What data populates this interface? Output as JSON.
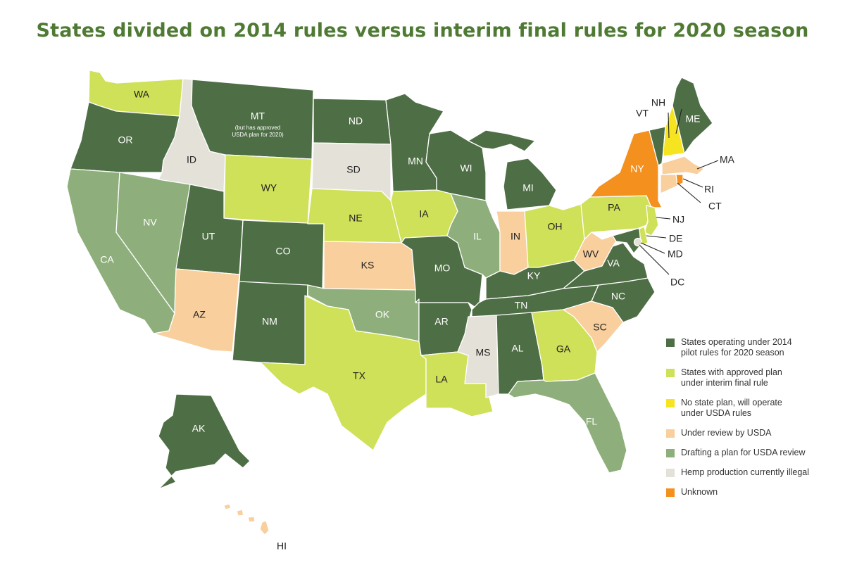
{
  "title": "States divided on 2014 rules versus interim final rules for 2020 season",
  "colors": {
    "pilot_2014": "#4e6e45",
    "approved_plan": "#cfe059",
    "no_plan": "#f6e420",
    "under_review": "#f8cf9d",
    "drafting": "#8eaf7c",
    "illegal": "#e3e1d8",
    "unknown": "#f4901e"
  },
  "legend": [
    {
      "key": "pilot_2014",
      "label": "States operating under 2014\npilot rules for 2020 season"
    },
    {
      "key": "approved_plan",
      "label": "States with approved plan\nunder interim final rule"
    },
    {
      "key": "no_plan",
      "label": "No state plan, will operate\nunder USDA rules"
    },
    {
      "key": "under_review",
      "label": "Under review by USDA"
    },
    {
      "key": "drafting",
      "label": "Drafting a plan for USDA review"
    },
    {
      "key": "illegal",
      "label": "Hemp production currently illegal"
    },
    {
      "key": "unknown",
      "label": "Unknown"
    }
  ],
  "states": {
    "WA": {
      "label": "WA",
      "status": "approved_plan"
    },
    "OR": {
      "label": "OR",
      "status": "pilot_2014"
    },
    "CA": {
      "label": "CA",
      "status": "drafting"
    },
    "NV": {
      "label": "NV",
      "status": "drafting"
    },
    "ID": {
      "label": "ID",
      "status": "illegal"
    },
    "MT": {
      "label": "MT",
      "status": "pilot_2014",
      "note": [
        "(but has approved",
        "USDA plan for 2020)"
      ]
    },
    "WY": {
      "label": "WY",
      "status": "approved_plan"
    },
    "UT": {
      "label": "UT",
      "status": "pilot_2014"
    },
    "AZ": {
      "label": "AZ",
      "status": "under_review"
    },
    "CO": {
      "label": "CO",
      "status": "pilot_2014"
    },
    "NM": {
      "label": "NM",
      "status": "pilot_2014"
    },
    "ND": {
      "label": "ND",
      "status": "pilot_2014"
    },
    "SD": {
      "label": "SD",
      "status": "illegal"
    },
    "NE": {
      "label": "NE",
      "status": "approved_plan"
    },
    "KS": {
      "label": "KS",
      "status": "under_review"
    },
    "OK": {
      "label": "OK",
      "status": "drafting"
    },
    "TX": {
      "label": "TX",
      "status": "approved_plan"
    },
    "MN": {
      "label": "MN",
      "status": "pilot_2014"
    },
    "IA": {
      "label": "IA",
      "status": "approved_plan"
    },
    "MO": {
      "label": "MO",
      "status": "pilot_2014"
    },
    "AR": {
      "label": "AR",
      "status": "pilot_2014"
    },
    "LA": {
      "label": "LA",
      "status": "approved_plan"
    },
    "WI": {
      "label": "WI",
      "status": "pilot_2014"
    },
    "IL": {
      "label": "IL",
      "status": "drafting"
    },
    "MI": {
      "label": "MI",
      "status": "pilot_2014"
    },
    "IN": {
      "label": "IN",
      "status": "under_review"
    },
    "OH": {
      "label": "OH",
      "status": "approved_plan"
    },
    "KY": {
      "label": "KY",
      "status": "pilot_2014"
    },
    "TN": {
      "label": "TN",
      "status": "pilot_2014"
    },
    "MS": {
      "label": "MS",
      "status": "illegal"
    },
    "AL": {
      "label": "AL",
      "status": "pilot_2014"
    },
    "GA": {
      "label": "GA",
      "status": "approved_plan"
    },
    "FL": {
      "label": "FL",
      "status": "drafting"
    },
    "SC": {
      "label": "SC",
      "status": "under_review"
    },
    "NC": {
      "label": "NC",
      "status": "pilot_2014"
    },
    "VA": {
      "label": "VA",
      "status": "pilot_2014"
    },
    "WV": {
      "label": "WV",
      "status": "under_review"
    },
    "PA": {
      "label": "PA",
      "status": "approved_plan"
    },
    "NY": {
      "label": "NY",
      "status": "unknown"
    },
    "VT": {
      "label": "VT",
      "status": "pilot_2014"
    },
    "NH": {
      "label": "NH",
      "status": "no_plan"
    },
    "ME": {
      "label": "ME",
      "status": "pilot_2014"
    },
    "MA": {
      "label": "MA",
      "status": "under_review"
    },
    "RI": {
      "label": "RI",
      "status": "unknown"
    },
    "CT": {
      "label": "CT",
      "status": "under_review"
    },
    "NJ": {
      "label": "NJ",
      "status": "approved_plan"
    },
    "DE": {
      "label": "DE",
      "status": "approved_plan"
    },
    "MD": {
      "label": "MD",
      "status": "pilot_2014"
    },
    "DC": {
      "label": "DC",
      "status": "illegal"
    },
    "AK": {
      "label": "AK",
      "status": "pilot_2014"
    },
    "HI": {
      "label": "HI",
      "status": "under_review"
    }
  }
}
